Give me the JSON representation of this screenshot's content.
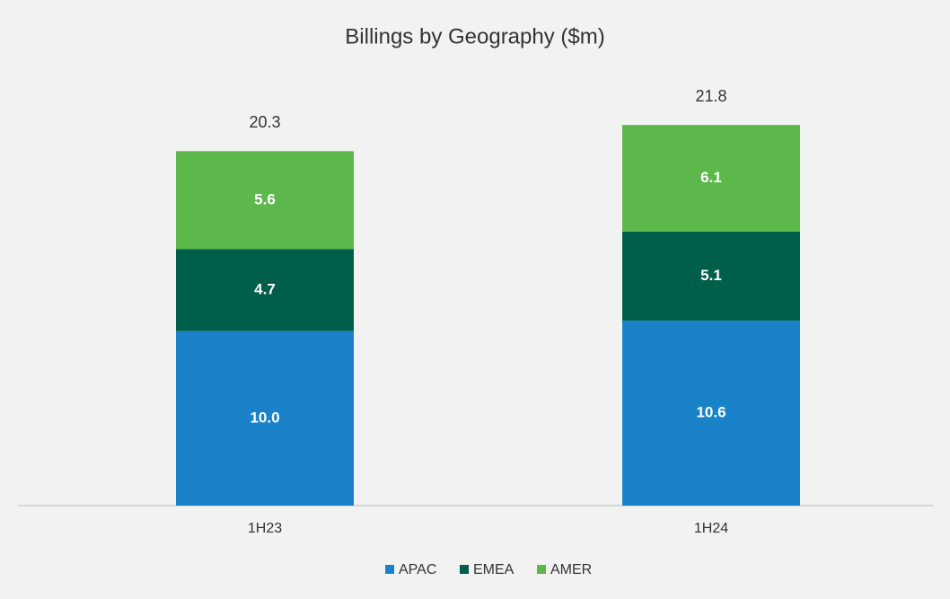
{
  "chart_data": {
    "type": "stacked_bar",
    "title": "Billings by Geography ($m)",
    "categories": [
      "1H23",
      "1H24"
    ],
    "series": [
      {
        "name": "APAC",
        "color": "#1a82c8",
        "values": [
          10,
          10.6
        ],
        "value_labels": [
          "10.0",
          "10.6"
        ]
      },
      {
        "name": "EMEA",
        "color": "#005f4b",
        "values": [
          4.7,
          5.1
        ]
      },
      {
        "name": "AMER",
        "color": "#5cb84a",
        "values": [
          5.6,
          6.1
        ]
      }
    ],
    "totals": [
      20.3,
      21.8
    ],
    "ylim": [
      0,
      25
    ]
  }
}
